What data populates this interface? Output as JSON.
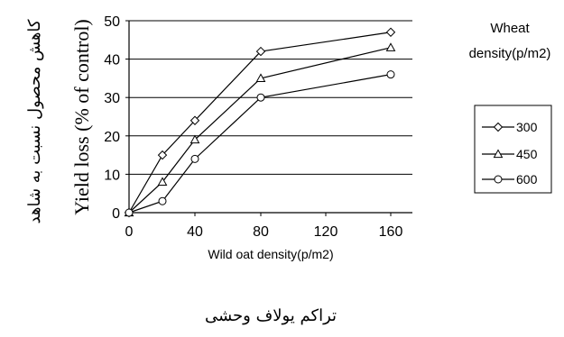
{
  "chart_data": {
    "type": "line",
    "x": [
      0,
      20,
      40,
      80,
      160
    ],
    "x_tick_labels": [
      "0",
      "40",
      "80",
      "120",
      "160"
    ],
    "y_tick_labels": [
      "0",
      "10",
      "20",
      "30",
      "40",
      "50"
    ],
    "ylim": [
      0,
      50
    ],
    "xlabel": "Wild oat density(p/m2)",
    "xlabel_fa": "تراکم یولاف وحشی",
    "ylabel": "Yield loss (% of control)",
    "ylabel_fa": "کاهش محصول نسبت به شاهد",
    "legend_title": "Wheat density(p/m2)",
    "legend_title_lines": [
      "Wheat",
      "density(p/m2)"
    ],
    "legend_position": "right",
    "grid": "horizontal",
    "series": [
      {
        "name": "300",
        "marker": "diamond",
        "values": [
          0,
          15,
          24,
          42,
          47
        ]
      },
      {
        "name": "450",
        "marker": "triangle",
        "values": [
          0,
          8,
          19,
          35,
          43
        ]
      },
      {
        "name": "600",
        "marker": "circle",
        "values": [
          0,
          3,
          14,
          30,
          36
        ]
      }
    ]
  }
}
